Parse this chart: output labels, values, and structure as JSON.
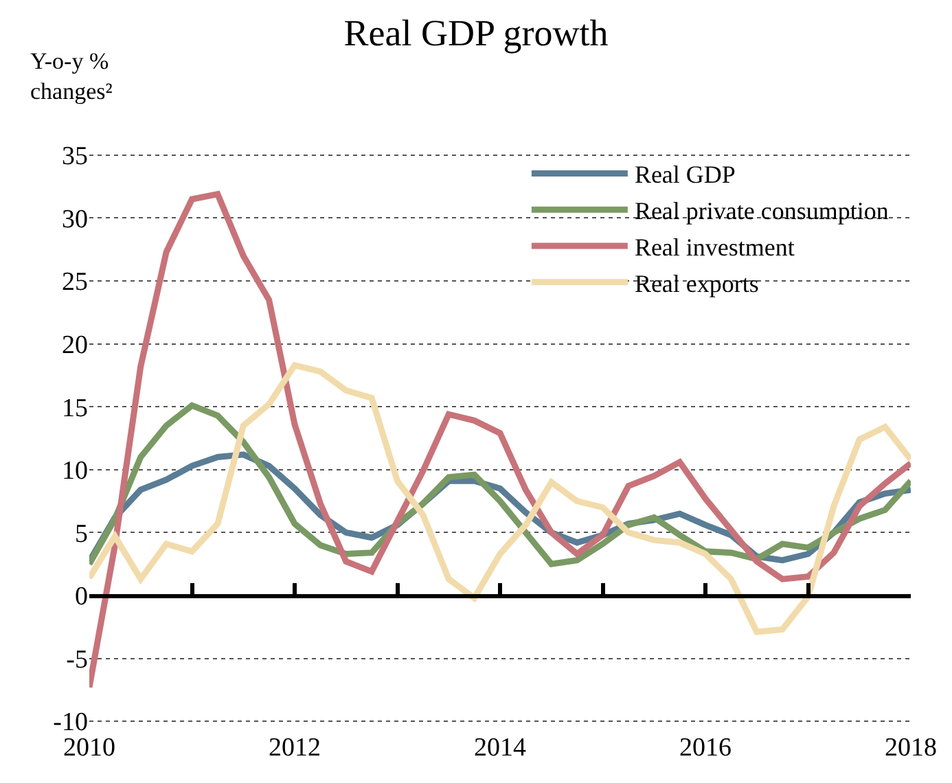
{
  "chart_data": {
    "type": "line",
    "title": "Real GDP growth",
    "ylabel": "Y-o-y %\nchanges²",
    "x": [
      2010,
      2010.25,
      2010.5,
      2010.75,
      2011,
      2011.25,
      2011.5,
      2011.75,
      2012,
      2012.25,
      2012.5,
      2012.75,
      2013,
      2013.25,
      2013.5,
      2013.75,
      2014,
      2014.25,
      2014.5,
      2014.75,
      2015,
      2015.25,
      2015.5,
      2015.75,
      2016,
      2016.25,
      2016.5,
      2016.75,
      2017,
      2017.25,
      2017.5,
      2017.75,
      2018
    ],
    "series": [
      {
        "name": "Real GDP",
        "color": "#5a7d96",
        "values": [
          2.7,
          6.2,
          8.4,
          9.2,
          10.3,
          11.0,
          11.2,
          10.3,
          8.5,
          6.4,
          5.0,
          4.6,
          5.6,
          7.3,
          9.1,
          9.1,
          8.5,
          6.6,
          5.0,
          4.2,
          4.8,
          5.7,
          6.0,
          6.5,
          5.6,
          4.8,
          3.1,
          2.8,
          3.3,
          5.0,
          7.4,
          8.1,
          8.4
        ]
      },
      {
        "name": "Real private consumption",
        "color": "#7a9a64",
        "values": [
          2.5,
          6.1,
          11.0,
          13.5,
          15.1,
          14.3,
          12.2,
          9.4,
          5.7,
          4.0,
          3.3,
          3.4,
          5.7,
          7.3,
          9.4,
          9.6,
          7.5,
          5.0,
          2.5,
          2.8,
          4.1,
          5.6,
          6.2,
          4.8,
          3.5,
          3.4,
          2.9,
          4.1,
          3.8,
          5.0,
          6.1,
          6.8,
          9.1
        ]
      },
      {
        "name": "Real investment",
        "color": "#c8737a",
        "values": [
          -7.3,
          4.0,
          18.2,
          27.3,
          31.5,
          31.9,
          27.0,
          23.5,
          13.6,
          7.3,
          2.7,
          1.9,
          5.9,
          9.9,
          14.4,
          13.9,
          12.9,
          8.4,
          5.0,
          3.3,
          4.8,
          8.7,
          9.5,
          10.6,
          7.7,
          5.2,
          2.7,
          1.3,
          1.5,
          3.4,
          7.1,
          8.9,
          10.5
        ]
      },
      {
        "name": "Real exports",
        "color": "#f2dbab",
        "values": [
          1.4,
          4.7,
          1.3,
          4.1,
          3.5,
          5.7,
          13.5,
          15.2,
          18.3,
          17.8,
          16.3,
          15.7,
          9.1,
          6.4,
          1.3,
          -0.2,
          3.3,
          5.6,
          9.0,
          7.5,
          7.0,
          5.0,
          4.4,
          4.2,
          3.3,
          1.3,
          -2.9,
          -2.7,
          -0.1,
          7.1,
          12.4,
          13.4,
          10.8
        ]
      }
    ],
    "xlim": [
      2010,
      2018
    ],
    "xticks": [
      2010,
      {
        "value": 2011,
        "label": null
      },
      2012,
      {
        "value": 2013,
        "label": null
      },
      2014,
      {
        "value": 2015,
        "label": null
      },
      2016,
      {
        "value": 2017,
        "label": null
      },
      2018
    ],
    "ylim": [
      -10,
      35
    ],
    "yticks": [
      -10,
      -5,
      0,
      5,
      10,
      15,
      20,
      25,
      30,
      35
    ],
    "grid": "y",
    "legend": "top right",
    "line_style": "solid",
    "marker": "none",
    "ref_lines": [
      {
        "axis": "y",
        "value": 0,
        "color": "#000000"
      }
    ]
  }
}
